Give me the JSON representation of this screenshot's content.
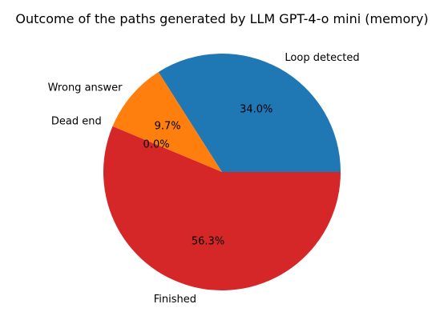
{
  "chart_data": {
    "type": "pie",
    "title": "Outcome of the paths generated by LLM GPT-4-o mini (memory)",
    "categories": [
      "Loop detected",
      "Wrong answer",
      "Dead end",
      "Finished"
    ],
    "values": [
      34.0,
      9.7,
      0.0,
      56.3
    ],
    "percent_labels": [
      "34.0%",
      "9.7%",
      "0.0%",
      "56.3%"
    ],
    "colors": [
      "#1f77b4",
      "#ff7f0e",
      "#2ca02c",
      "#d62728"
    ],
    "start_angle_deg": 0,
    "direction": "counterclockwise",
    "legend": "none"
  }
}
